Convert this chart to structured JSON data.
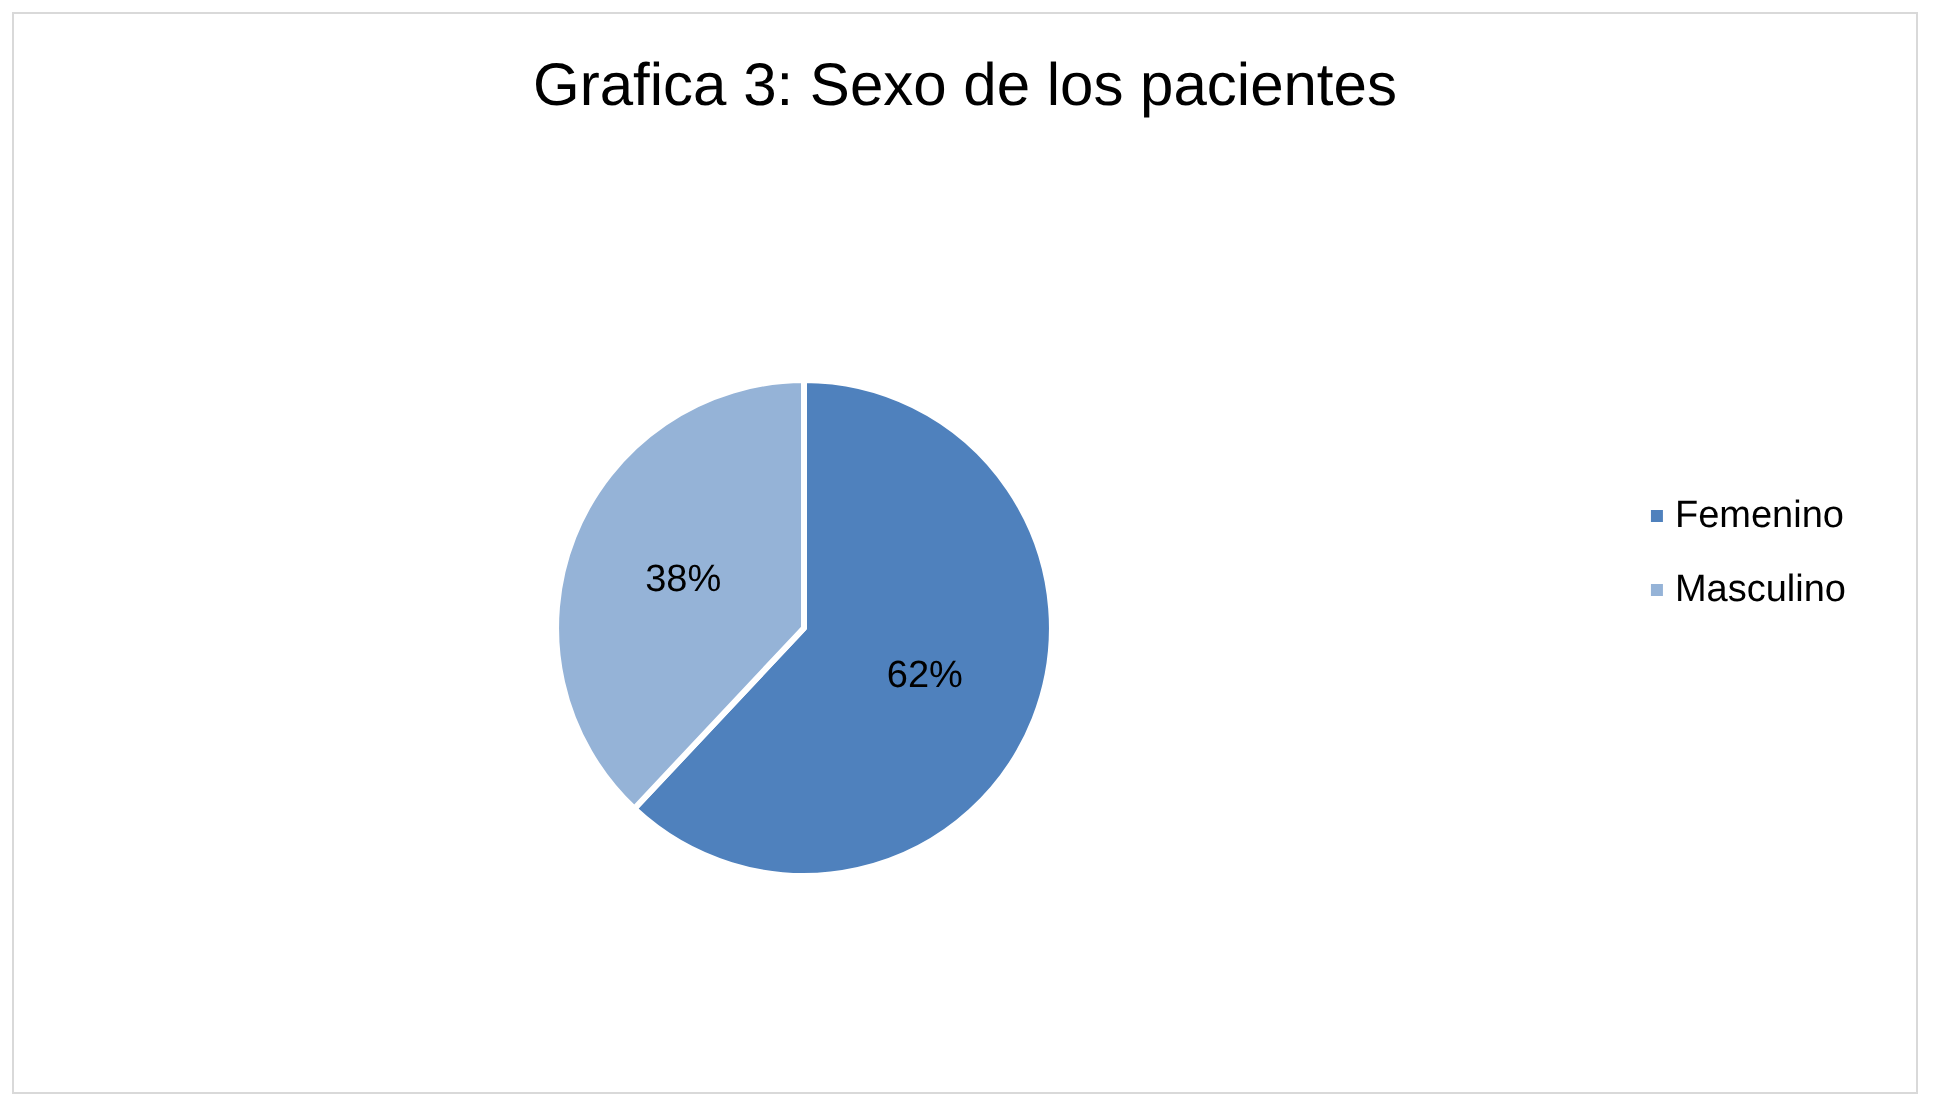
{
  "chart_data": {
    "type": "pie",
    "title": "Grafica 3: Sexo de los pacientes",
    "categories": [
      "Femenino",
      "Masculino"
    ],
    "values": [
      62,
      38
    ],
    "value_labels": [
      "62%",
      "38%"
    ],
    "colors": [
      "#4f81bd",
      "#95b3d7"
    ],
    "legend": "right"
  }
}
